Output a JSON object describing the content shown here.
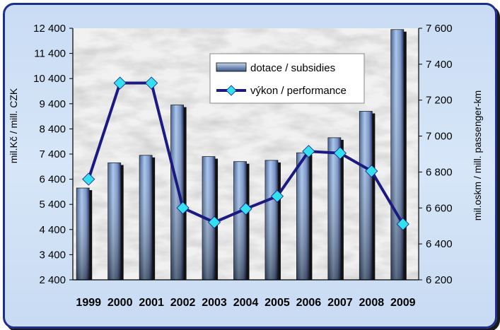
{
  "chart_data": {
    "type": "bar+line",
    "categories": [
      "1999",
      "2000",
      "2001",
      "2002",
      "2003",
      "2004",
      "2005",
      "2006",
      "2007",
      "2008",
      "2009"
    ],
    "series": [
      {
        "name": "dotace / subsidies",
        "kind": "bar",
        "axis": "left",
        "values": [
          6050,
          7050,
          7350,
          9350,
          7300,
          7100,
          7150,
          7450,
          8050,
          9100,
          12350
        ]
      },
      {
        "name": "výkon / performance",
        "kind": "line",
        "axis": "right",
        "values": [
          6760,
          7295,
          7295,
          6600,
          6520,
          6595,
          6665,
          6915,
          6905,
          6805,
          6510
        ]
      }
    ],
    "ylabel": "mil.Kč / mill. CZK",
    "y2label": "mil.oskm / mill. passenger-km",
    "ylim": [
      2400,
      12400
    ],
    "y2lim": [
      6200,
      7600
    ],
    "yticks": [
      "2 400",
      "3 400",
      "4 400",
      "5 400",
      "6 400",
      "7 400",
      "8 400",
      "9 400",
      "10 400",
      "11 400",
      "12 400"
    ],
    "y2ticks": [
      "6 200",
      "6 400",
      "6 600",
      "6 800",
      "7 000",
      "7 200",
      "7 400",
      "7 600"
    ],
    "legend_position": "top-center",
    "colors": {
      "line": "#1a1a80",
      "marker": "#33e0ef",
      "bar_light": "#a8c6ec",
      "bar_dark": "#1f2f6a",
      "frame": "#1d2f8c"
    }
  }
}
